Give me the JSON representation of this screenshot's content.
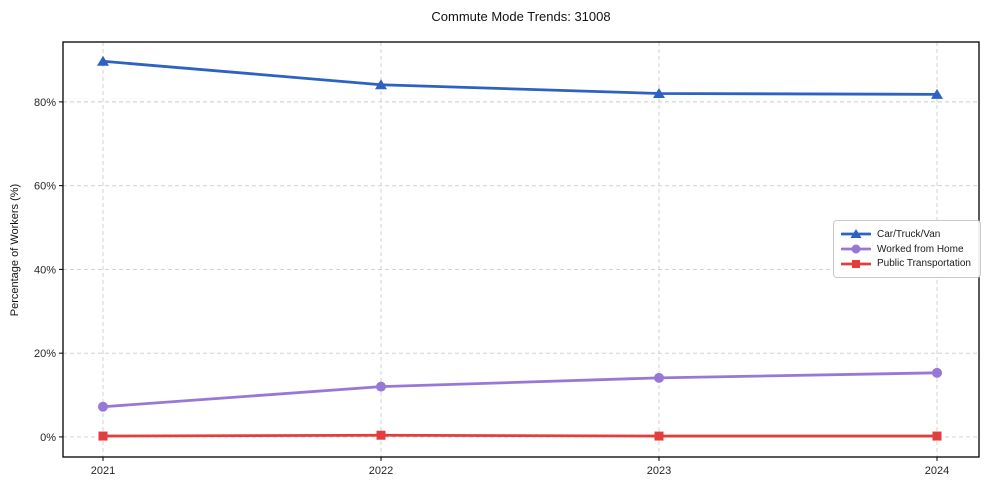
{
  "figure": {
    "title": "Commute Mode Trends: 31008",
    "background_color": "#ffffff",
    "axis_color": "#000000",
    "grid_color": "#cccccc",
    "text_color": "#262626"
  },
  "chart_data": {
    "type": "line",
    "title": "Commute Mode Trends: 31008",
    "xlabel": "",
    "ylabel": "Percentage of Workers (%)",
    "x": [
      2021,
      2022,
      2023,
      2024
    ],
    "x_tick_labels": [
      "2021",
      "2022",
      "2023",
      "2024"
    ],
    "y_ticks": [
      0,
      20,
      40,
      60,
      80
    ],
    "y_tick_labels": [
      "0%",
      "20%",
      "40%",
      "60%",
      "80%"
    ],
    "ylim": [
      -4.8,
      94.3
    ],
    "grid": true,
    "grid_style": "dashed",
    "legend_position": "center-right",
    "series": [
      {
        "name": "Car/Truck/Van",
        "marker": "triangle",
        "color": "#2d62c4",
        "values": [
          89.7,
          84.1,
          82.0,
          81.8
        ]
      },
      {
        "name": "Worked from Home",
        "marker": "circle",
        "color": "#9878d6",
        "values": [
          7.2,
          12.0,
          14.1,
          15.3
        ]
      },
      {
        "name": "Public Transportation",
        "marker": "square",
        "color": "#e23e3e",
        "values": [
          0.2,
          0.4,
          0.2,
          0.2
        ]
      }
    ]
  }
}
